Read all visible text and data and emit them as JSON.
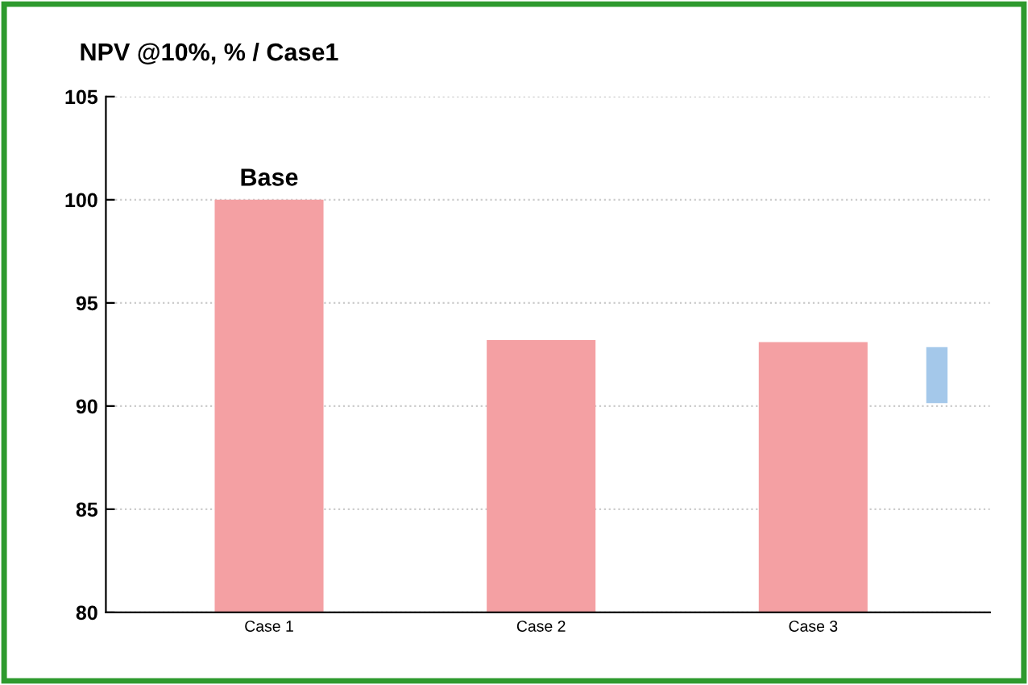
{
  "chart_data": {
    "type": "bar",
    "title": "NPV @10%, % / Case1",
    "categories": [
      "Case 1",
      "Case 2",
      "Case 3"
    ],
    "values": [
      100,
      93.2,
      93.1
    ],
    "color": "#f4a0a3",
    "ylim": [
      80,
      105
    ],
    "yticks": [
      80,
      85,
      90,
      95,
      100,
      105
    ],
    "grid": "y",
    "annotations": [
      {
        "text": "Base",
        "x": "Case 1",
        "y": 100
      }
    ]
  }
}
